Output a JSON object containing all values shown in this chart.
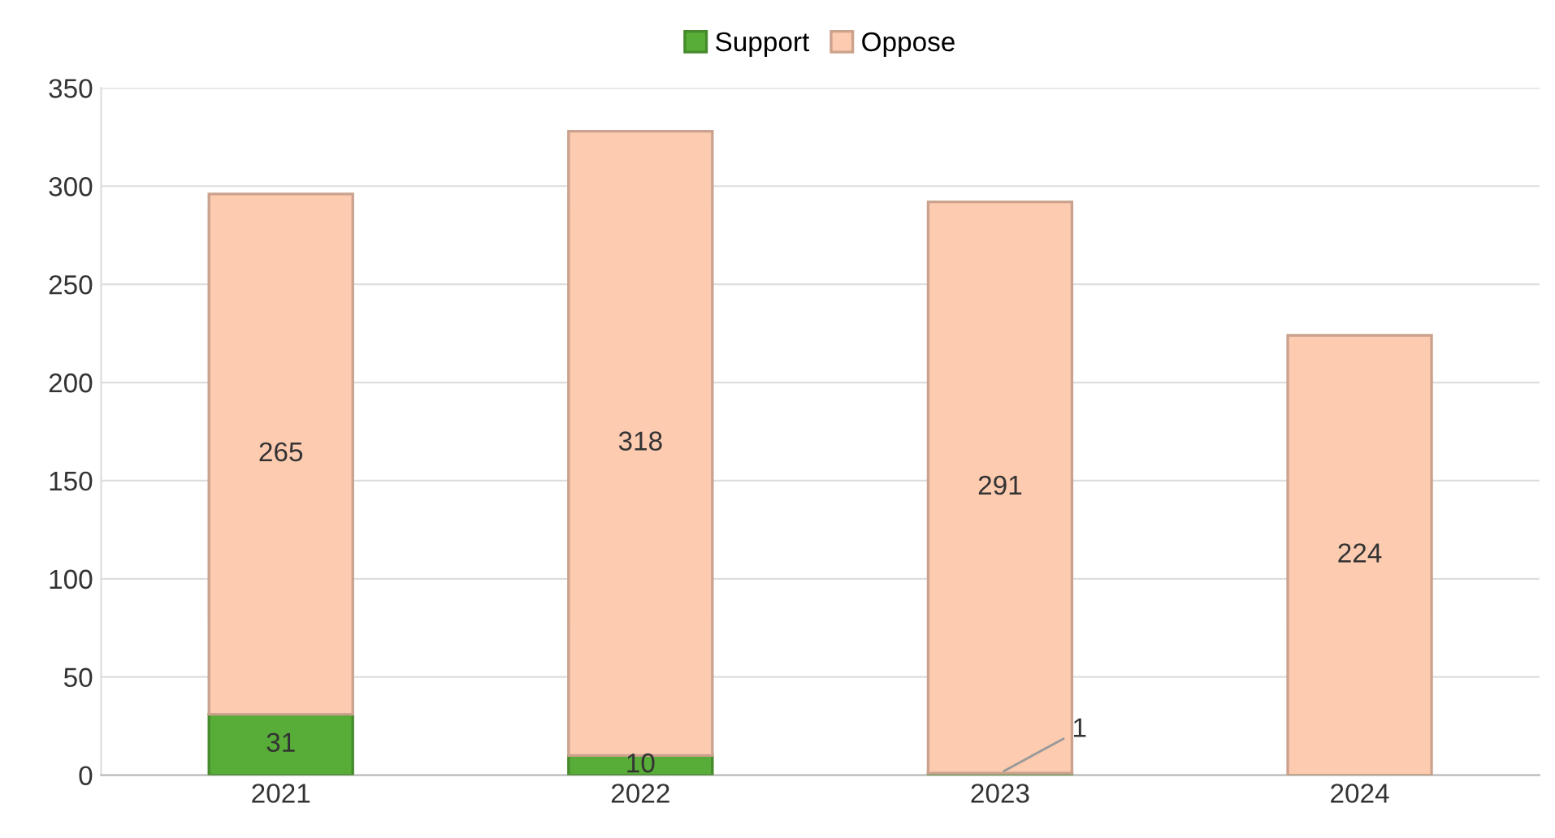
{
  "chart_data": {
    "type": "bar",
    "stacked": true,
    "categories": [
      "2021",
      "2022",
      "2023",
      "2024"
    ],
    "series": [
      {
        "name": "Support",
        "color": "#58ad38",
        "values": [
          31,
          10,
          1,
          0
        ],
        "value_labels": [
          "31",
          "10",
          "1",
          null
        ]
      },
      {
        "name": "Oppose",
        "color": "#fdcbb0",
        "values": [
          265,
          318,
          291,
          224
        ],
        "value_labels": [
          "265",
          "318",
          "291",
          "224"
        ]
      }
    ],
    "ylim": [
      0,
      350
    ],
    "yticks": [
      0,
      50,
      100,
      150,
      200,
      250,
      300,
      350
    ],
    "grid": "y",
    "legend": "top"
  }
}
